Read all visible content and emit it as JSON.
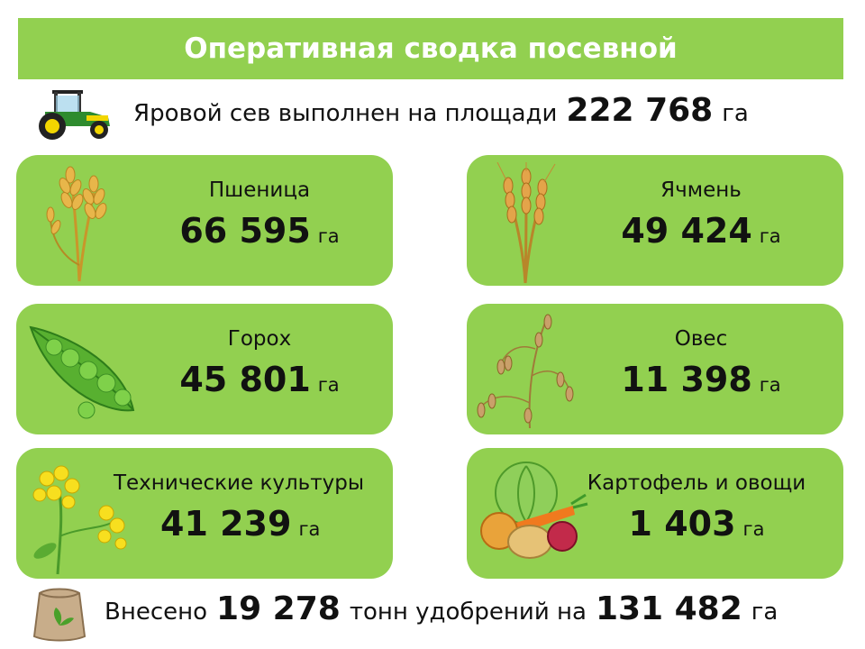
{
  "title": "Оперативная сводка посевной",
  "summary": {
    "prefix": "Яровой сев выполнен на площади",
    "value": "222 768",
    "unit": "га"
  },
  "cards": [
    {
      "name": "Пшеница",
      "value": "66 595",
      "unit": "га",
      "icon": "wheat-icon"
    },
    {
      "name": "Ячмень",
      "value": "49 424",
      "unit": "га",
      "icon": "barley-icon"
    },
    {
      "name": "Горох",
      "value": "45 801",
      "unit": "га",
      "icon": "pea-pod-icon"
    },
    {
      "name": "Овес",
      "value": "11 398",
      "unit": "га",
      "icon": "oat-icon"
    },
    {
      "name": "Технические культуры",
      "value": "41 239",
      "unit": "га",
      "icon": "rapeseed-flower-icon"
    },
    {
      "name": "Картофель и овощи",
      "value": "1 403",
      "unit": "га",
      "icon": "vegetables-icon"
    }
  ],
  "footer": {
    "prefix": "Внесено",
    "tons": "19 278",
    "middle": "тонн удобрений на",
    "area": "131 482",
    "unit": "га"
  },
  "colors": {
    "green": "#92d050",
    "text": "#111111",
    "title_text": "#ffffff"
  }
}
